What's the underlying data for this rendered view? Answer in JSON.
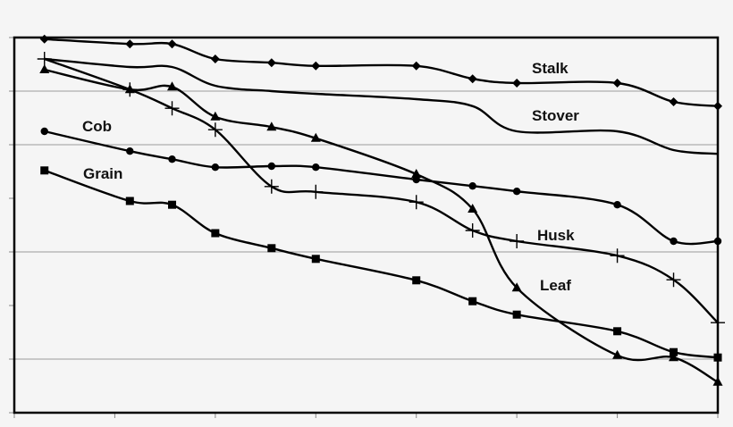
{
  "chart_data": {
    "type": "line",
    "title": "",
    "xlabel": "",
    "ylabel": "",
    "x": [
      0.3,
      1.15,
      1.57,
      2.0,
      2.56,
      3.0,
      4.0,
      4.56,
      5.0,
      6.0,
      6.56,
      7.0
    ],
    "xlim": [
      0,
      7
    ],
    "ylim": [
      0,
      7
    ],
    "x_ticks": 8,
    "y_ticks": 8,
    "gridlines_y": [
      6,
      5,
      3,
      1
    ],
    "legend_position": "inline labels",
    "series": [
      {
        "name": "Stalk",
        "marker": "diamond",
        "values": [
          6.97,
          6.88,
          6.88,
          6.6,
          6.53,
          6.47,
          6.47,
          6.23,
          6.15,
          6.15,
          5.8,
          5.72
        ]
      },
      {
        "name": "Stover",
        "marker": "none",
        "values": [
          6.6,
          6.45,
          6.45,
          6.1,
          6.0,
          5.95,
          5.85,
          5.72,
          5.25,
          5.25,
          4.9,
          4.83
        ]
      },
      {
        "name": "Husk",
        "marker": "plus",
        "values": [
          6.6,
          6.03,
          5.68,
          5.28,
          4.22,
          4.12,
          3.93,
          3.4,
          3.2,
          2.93,
          2.48,
          1.68
        ]
      },
      {
        "name": "Leaf",
        "marker": "triangle",
        "values": [
          6.4,
          6.03,
          6.08,
          5.52,
          5.33,
          5.12,
          4.45,
          3.8,
          2.33,
          1.07,
          1.03,
          0.57
        ]
      },
      {
        "name": "Cob",
        "marker": "circle",
        "values": [
          5.25,
          4.88,
          4.73,
          4.58,
          4.6,
          4.58,
          4.35,
          4.23,
          4.13,
          3.88,
          3.2,
          3.2
        ]
      },
      {
        "name": "Grain",
        "marker": "square",
        "values": [
          4.52,
          3.95,
          3.88,
          3.35,
          3.07,
          2.87,
          2.47,
          2.08,
          1.83,
          1.52,
          1.13,
          1.03
        ]
      }
    ],
    "labels": [
      {
        "text": "Stalk",
        "series": "Stalk"
      },
      {
        "text": "Stover",
        "series": "Stover"
      },
      {
        "text": "Husk",
        "series": "Husk"
      },
      {
        "text": "Leaf",
        "series": "Leaf"
      },
      {
        "text": "Cob",
        "series": "Cob"
      },
      {
        "text": "Grain",
        "series": "Grain"
      }
    ]
  },
  "labels": {
    "stalk": "Stalk",
    "stover": "Stover",
    "husk": "Husk",
    "leaf": "Leaf",
    "cob": "Cob",
    "grain": "Grain"
  }
}
